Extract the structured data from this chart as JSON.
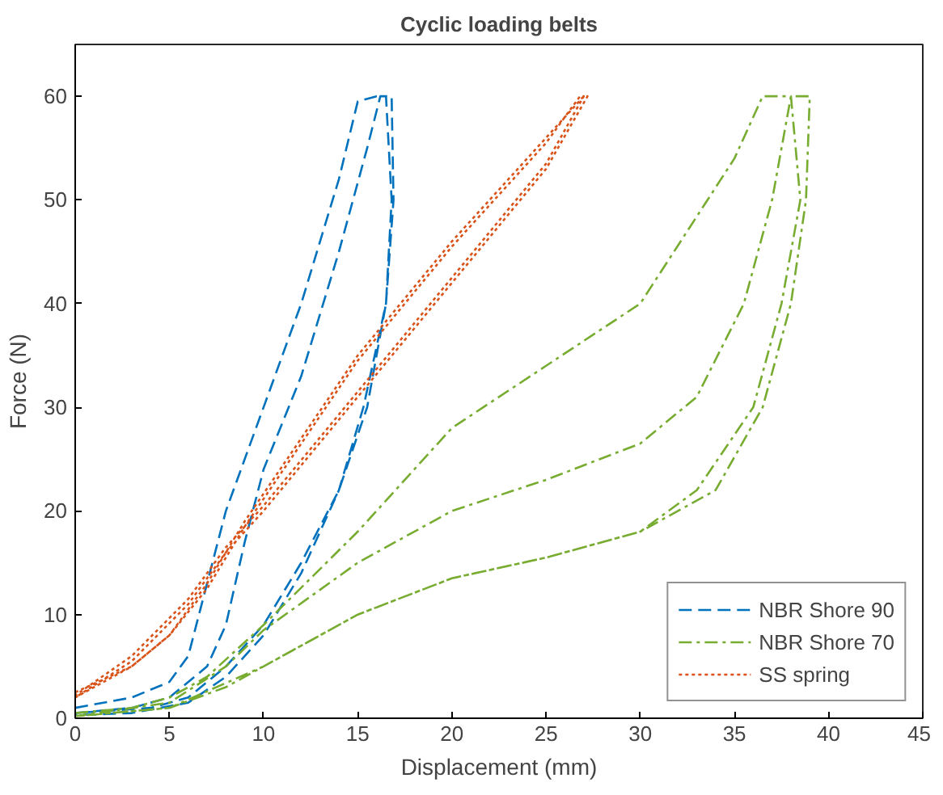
{
  "chart_data": {
    "type": "line",
    "title": "Cyclic loading belts",
    "xlabel": "Displacement (mm)",
    "ylabel": "Force (N)",
    "xlim": [
      0,
      45
    ],
    "ylim": [
      0,
      65
    ],
    "xticks": [
      0,
      5,
      10,
      15,
      20,
      25,
      30,
      35,
      40,
      45
    ],
    "yticks": [
      0,
      10,
      20,
      30,
      40,
      50,
      60
    ],
    "grid": false,
    "legend": "bottom right",
    "marker": "none",
    "series": [
      {
        "name": "NBR Shore 90",
        "color": "#0072bd",
        "line_style": "dashed",
        "x": [
          0,
          3,
          5,
          6,
          7,
          8,
          10,
          12,
          14,
          15,
          16,
          16.5,
          16.8,
          16.5,
          15.5,
          14,
          12,
          10,
          8,
          6,
          4,
          0,
          3,
          5,
          7,
          8,
          9,
          10,
          12,
          14,
          15.5,
          16.2,
          16.8,
          16.9,
          16.5,
          15.3,
          14,
          12,
          10,
          8,
          6,
          3,
          0
        ],
        "values": [
          1,
          2,
          3.5,
          6,
          13,
          20,
          30,
          40,
          52,
          59.5,
          60,
          60,
          50,
          40,
          30,
          22,
          15,
          9,
          5,
          2,
          1,
          0.5,
          1,
          2,
          5,
          9,
          17,
          24,
          33,
          45,
          55,
          60,
          60,
          50,
          40,
          30,
          22,
          14,
          8,
          4,
          1.5,
          0.5,
          0.3
        ]
      },
      {
        "name": "NBR Shore 70",
        "color": "#77ac30",
        "line_style": "dashdot",
        "x": [
          0,
          3,
          5,
          7,
          10,
          15,
          20,
          25,
          30,
          35,
          36.5,
          38,
          38.5,
          37.5,
          36,
          33,
          30,
          25,
          20,
          15,
          10,
          8,
          5,
          0,
          5,
          8,
          10,
          15,
          20,
          25,
          30,
          33,
          35.5,
          37,
          38,
          39,
          38.8,
          38,
          36.5,
          34,
          30,
          25,
          20,
          15,
          10,
          5,
          0
        ],
        "values": [
          0.5,
          1,
          2,
          4,
          9,
          18,
          28,
          34,
          40,
          54,
          60,
          60,
          50,
          40,
          30,
          22,
          18,
          15.5,
          13.5,
          10,
          5,
          3,
          1,
          0.2,
          1.5,
          5,
          8.5,
          15,
          20,
          23,
          26.5,
          31,
          40,
          50,
          60,
          60,
          50,
          40,
          30,
          22,
          18,
          15.5,
          13.5,
          10,
          5,
          1,
          0.2
        ]
      },
      {
        "name": "SS spring",
        "color": "#d95319",
        "line_style": "dotted",
        "x": [
          0,
          3,
          5,
          7,
          9,
          12,
          15,
          20,
          25,
          27,
          27.2,
          25,
          20,
          15,
          10,
          8,
          6,
          3,
          0,
          3,
          5,
          7,
          9,
          12,
          15,
          20,
          25,
          26.8,
          27,
          25,
          20,
          15,
          10,
          8,
          6,
          3,
          0
        ],
        "values": [
          2.5,
          5,
          8,
          13,
          19,
          27,
          35,
          46,
          56,
          60,
          60,
          53,
          42,
          31,
          20,
          16,
          11,
          5.5,
          2,
          5,
          8,
          12.5,
          18.5,
          26.5,
          34.5,
          45.5,
          55.5,
          60,
          60,
          53.5,
          42.5,
          31.5,
          20.5,
          16.5,
          11.5,
          6,
          2.2
        ]
      }
    ]
  }
}
